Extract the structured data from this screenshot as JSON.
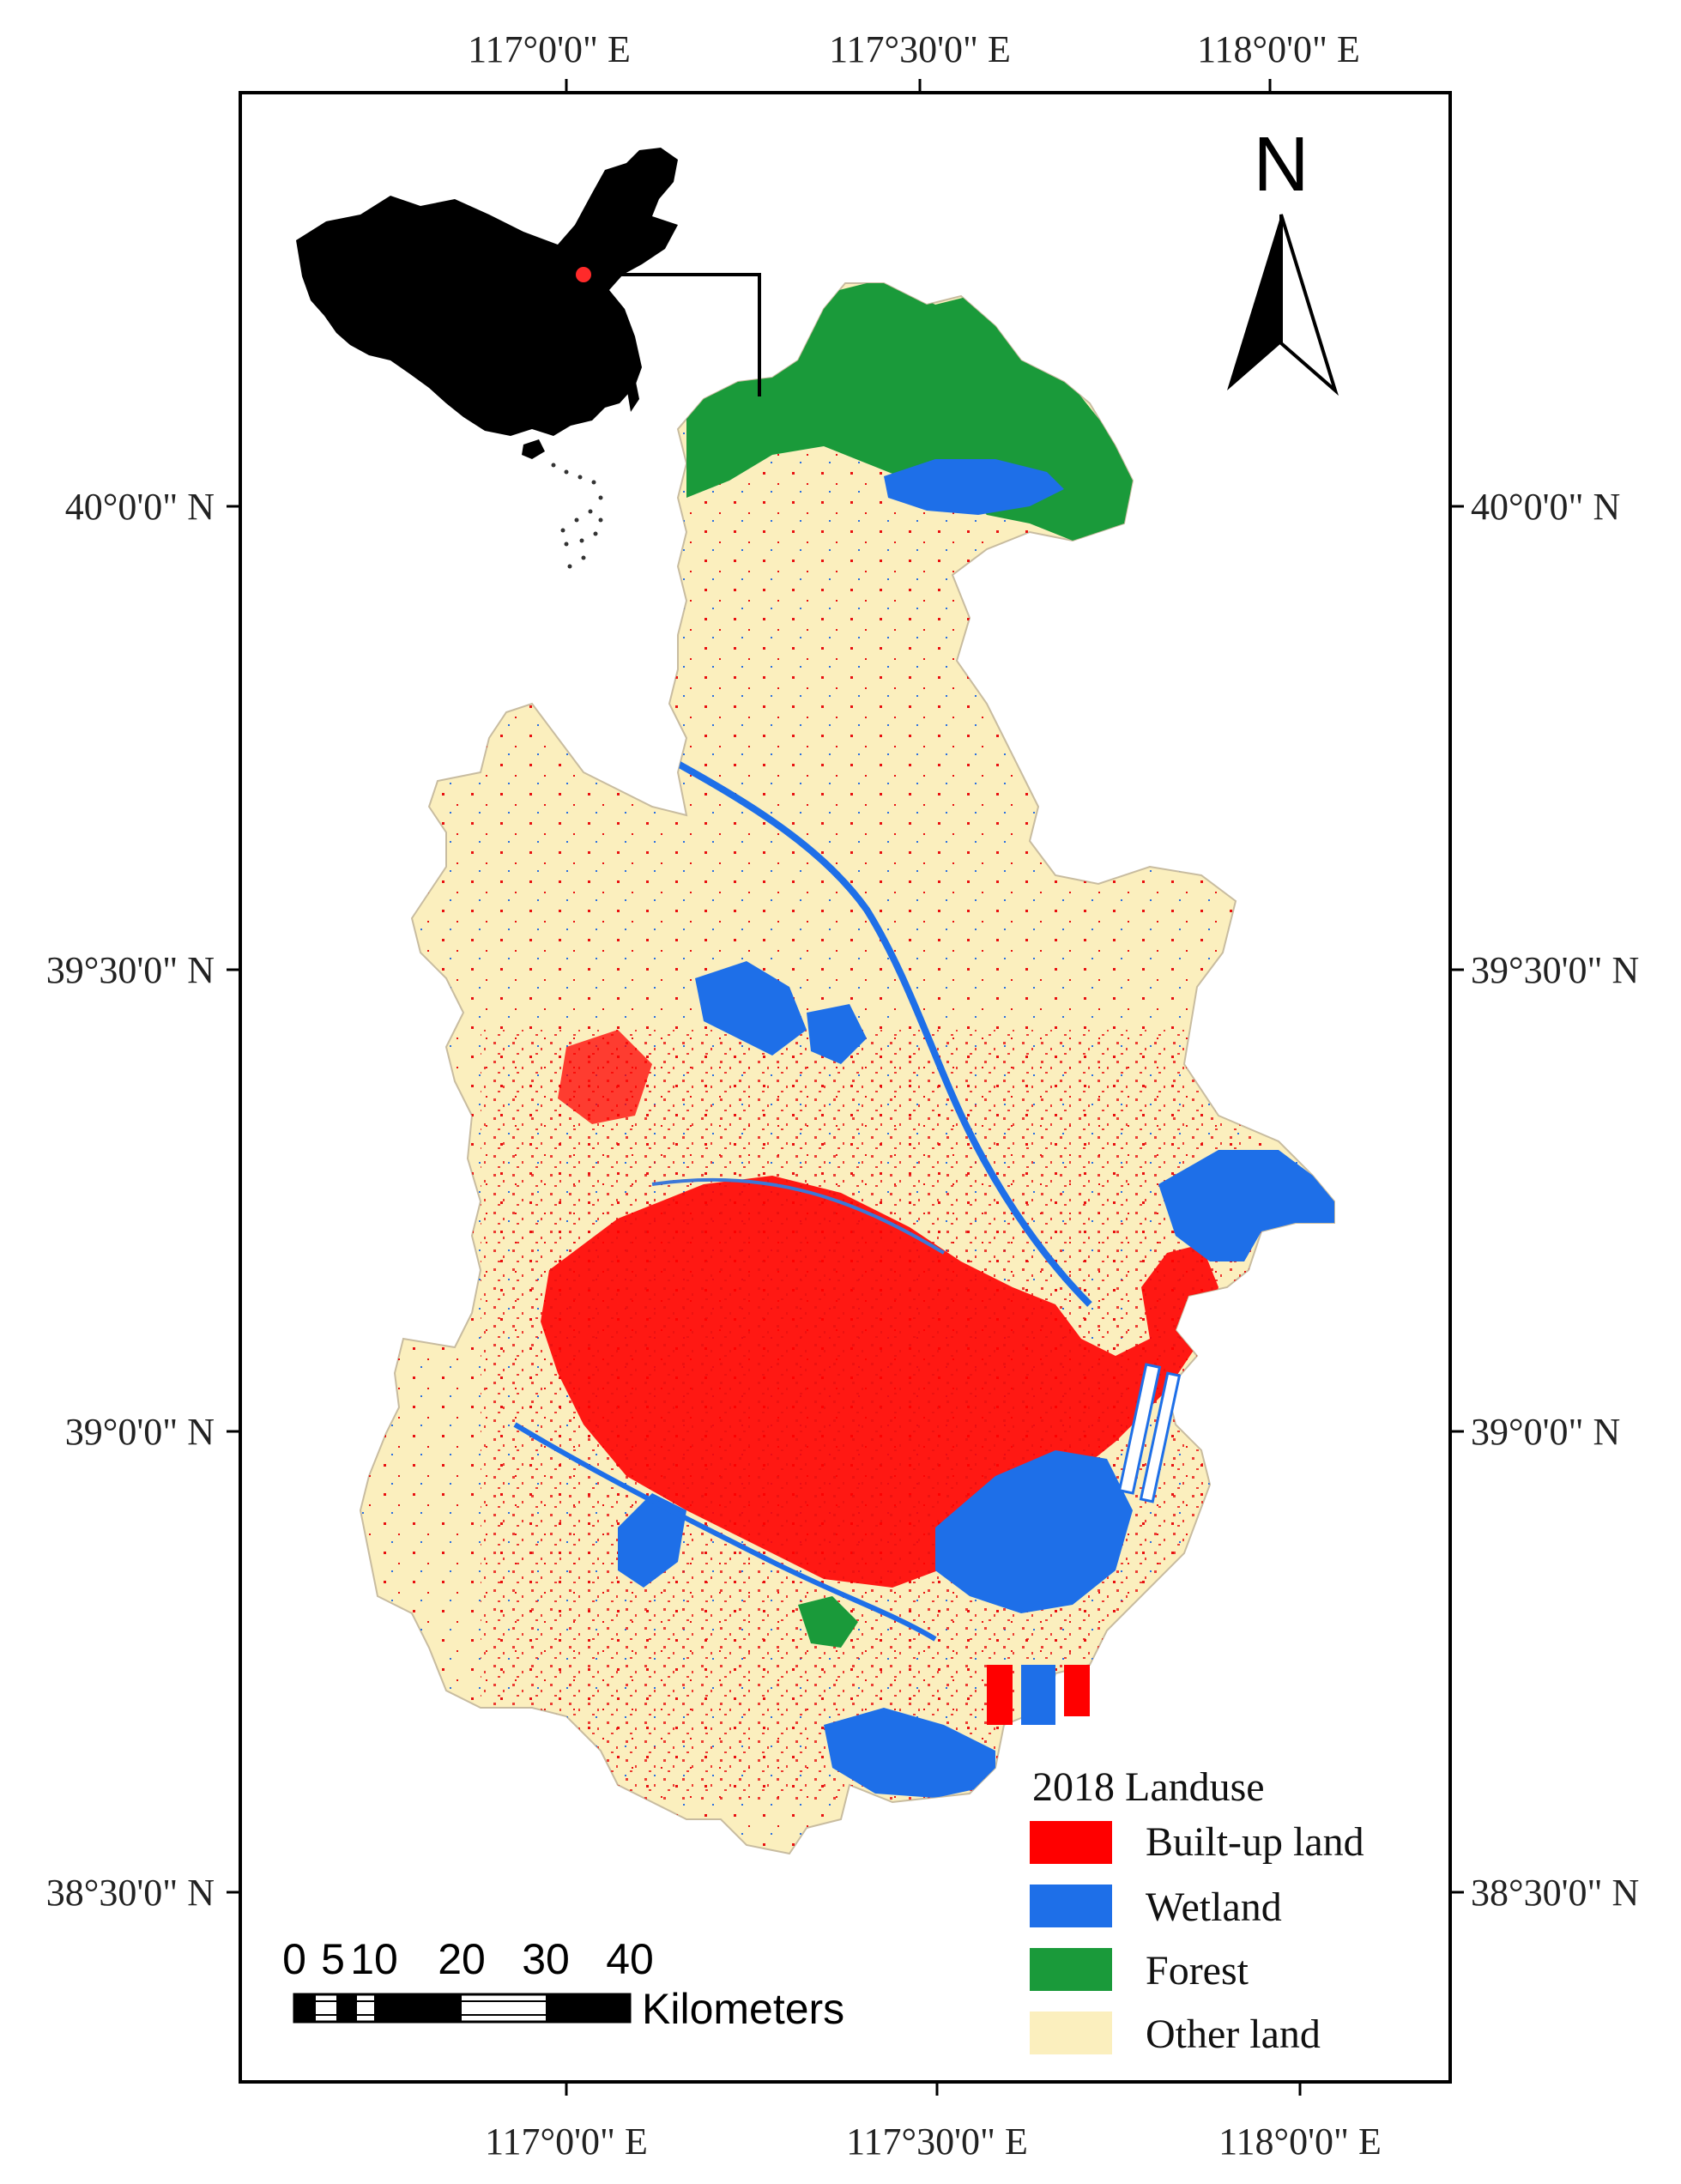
{
  "map": {
    "top_longitudes": [
      "117°0'0\" E",
      "117°30'0\" E",
      "118°0'0\" E"
    ],
    "bottom_longitudes": [
      "117°0'0\" E",
      "117°30'0\" E",
      "118°0'0\" E"
    ],
    "left_latitudes": [
      "40°0'0\" N",
      "39°30'0\" N",
      "39°0'0\" N",
      "38°30'0\" N"
    ],
    "right_latitudes": [
      "40°0'0\" N",
      "39°30'0\" N",
      "39°0'0\" N",
      "38°30'0\" N"
    ],
    "north_arrow": {
      "label": "N",
      "icon": "north-arrow-icon"
    },
    "scale_bar": {
      "labels": [
        "0",
        "5",
        "10",
        "20",
        "30",
        "40"
      ],
      "unit": "Kilometers"
    },
    "legend": {
      "title": "2018 Landuse",
      "items": [
        {
          "label": "Built-up land",
          "color": "#ff0000"
        },
        {
          "label": "Wetland",
          "color": "#1e6fe8"
        },
        {
          "label": "Forest",
          "color": "#1a9a3a"
        },
        {
          "label": "Other land",
          "color": "#fbefbe"
        }
      ]
    },
    "colors": {
      "frame": "#000000",
      "inset_china": "#000000",
      "inset_marker": "#ff2a2a"
    }
  }
}
